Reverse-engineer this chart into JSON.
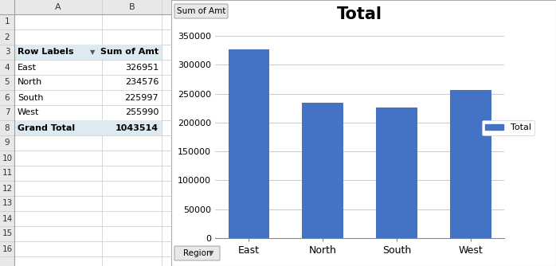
{
  "categories": [
    "East",
    "North",
    "South",
    "West"
  ],
  "values": [
    326951,
    234576,
    225997,
    255990
  ],
  "bar_color": "#4472C4",
  "title": "Total",
  "title_fontsize": 18,
  "title_fontweight": "bold",
  "ylim": [
    0,
    350000
  ],
  "yticks": [
    0,
    50000,
    100000,
    150000,
    200000,
    250000,
    300000,
    350000
  ],
  "legend_label": "Total",
  "legend_color": "#4472C4",
  "sum_of_amt_label": "Sum of Amt",
  "region_label": "Region",
  "tick_fontsize": 9,
  "axis_label_fontsize": 9,
  "excel_bg_color": "#F2F2F2",
  "chart_bg_color": "#FFFFFF",
  "grid_color": "#C0C0C0",
  "spreadsheet_bg": "#FFFFFF",
  "cell_border_color": "#D3D3D3",
  "row_labels_col": [
    "Row Labels",
    "East",
    "North",
    "South",
    "West",
    "Grand Total"
  ],
  "row_values_col": [
    "Sum of Amt",
    "326951",
    "234576",
    "225997",
    "255990",
    "1043514"
  ],
  "header_bg": "#DDEEFF",
  "grand_total_bg": "#DDEEFF",
  "col_header_bg": "#E8E8E8"
}
